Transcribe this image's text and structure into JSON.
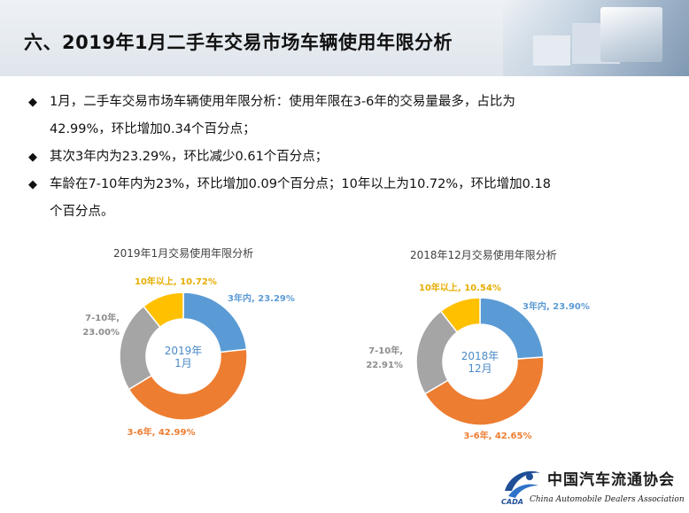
{
  "header": {
    "title": "六、2019年1月二手车交易市场车辆使用年限分析"
  },
  "bullets": [
    {
      "mark": "◆",
      "lines": [
        "1月，二手车交易市场车辆使用年限分析：使用年限在3-6年的交易量最多，占比为",
        "42.99%，环比增加0.34个百分点；"
      ]
    },
    {
      "mark": "◆",
      "lines": [
        "其次3年内为23.29%，环比减少0.61个百分点；"
      ]
    },
    {
      "mark": "◆",
      "lines": [
        "车龄在7-10年内为23%，环比增加0.09个百分点；10年以上为10.72%，环比增加0.18",
        "个百分点。"
      ]
    }
  ],
  "chart_data": [
    {
      "type": "pie",
      "title": "2019年1月交易使用年限分析",
      "center_label": [
        "2019年",
        "1月"
      ],
      "slices": [
        {
          "name": "3年内",
          "value": 23.29,
          "label": "3年内, 23.29%",
          "color": "#5b9bd5"
        },
        {
          "name": "3-6年",
          "value": 42.99,
          "label": "3-6年, 42.99%",
          "color": "#ed7d31"
        },
        {
          "name": "7-10年",
          "value": 23.0,
          "label": [
            "7-10年,",
            "23.00%"
          ],
          "color": "#a5a5a5"
        },
        {
          "name": "10年以上",
          "value": 10.72,
          "label": "10年以上, 10.72%",
          "color": "#ffc000"
        }
      ]
    },
    {
      "type": "pie",
      "title": "2018年12月交易使用年限分析",
      "center_label": [
        "2018年",
        "12月"
      ],
      "slices": [
        {
          "name": "3年内",
          "value": 23.9,
          "label": "3年内, 23.90%",
          "color": "#5b9bd5"
        },
        {
          "name": "3-6年",
          "value": 42.65,
          "label": "3-6年, 42.65%",
          "color": "#ed7d31"
        },
        {
          "name": "7-10年",
          "value": 22.91,
          "label": [
            "7-10年,",
            "22.91%"
          ],
          "color": "#a5a5a5"
        },
        {
          "name": "10年以上",
          "value": 10.54,
          "label": "10年以上, 10.54%",
          "color": "#ffc000"
        }
      ]
    }
  ],
  "logo": {
    "name_cn": "中国汽车流通协会",
    "name_en": "China Automobile Dealers Association",
    "abbr": "CADA"
  }
}
